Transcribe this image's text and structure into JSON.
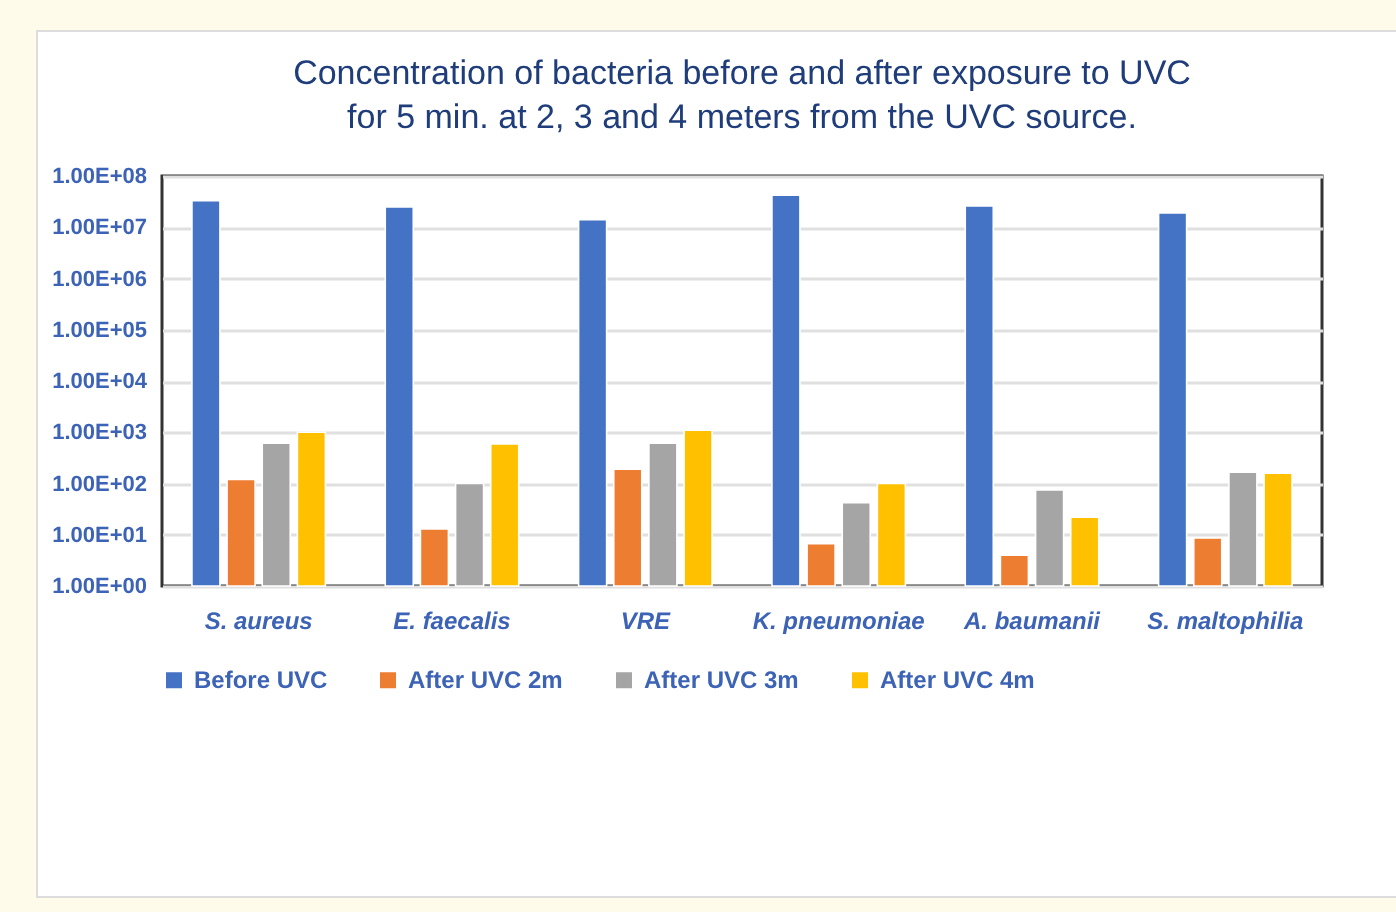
{
  "chart_data": {
    "type": "bar",
    "title": "Concentration of bacteria before and after exposure to UVC\nfor 5 min. at 2, 3 and 4 meters from the UVC source.",
    "categories": [
      "S. aureus",
      "E. faecalis",
      "VRE",
      "K. pneumoniae",
      "A. baumanii",
      "S. maltophilia"
    ],
    "series": [
      {
        "name": "Before UVC",
        "color": "#4472c4",
        "values": [
          33000000,
          25000000,
          14000000,
          42000000,
          26000000,
          19000000
        ]
      },
      {
        "name": "After UVC 2m",
        "color": "#ed7d31",
        "values": [
          120,
          13,
          190,
          6.7,
          4,
          8.7
        ]
      },
      {
        "name": "After UVC 3m",
        "color": "#a5a5a5",
        "values": [
          610,
          100,
          610,
          42,
          75,
          167
        ]
      },
      {
        "name": "After UVC 4m",
        "color": "#ffc000",
        "values": [
          1000,
          590,
          1100,
          100,
          22,
          158
        ]
      }
    ],
    "log": true,
    "ylim": [
      1,
      100000000
    ],
    "yticks": [
      {
        "value": 1,
        "label": "1.00E+00"
      },
      {
        "value": 10,
        "label": "1.00E+01"
      },
      {
        "value": 100,
        "label": "1.00E+02"
      },
      {
        "value": 1000,
        "label": "1.00E+03"
      },
      {
        "value": 10000,
        "label": "1.00E+04"
      },
      {
        "value": 100000,
        "label": "1.00E+05"
      },
      {
        "value": 1000000,
        "label": "1.00E+06"
      },
      {
        "value": 10000000,
        "label": "1.00E+07"
      },
      {
        "value": 100000000,
        "label": "1.00E+08"
      }
    ],
    "grid": "y",
    "legend": "bottom"
  }
}
